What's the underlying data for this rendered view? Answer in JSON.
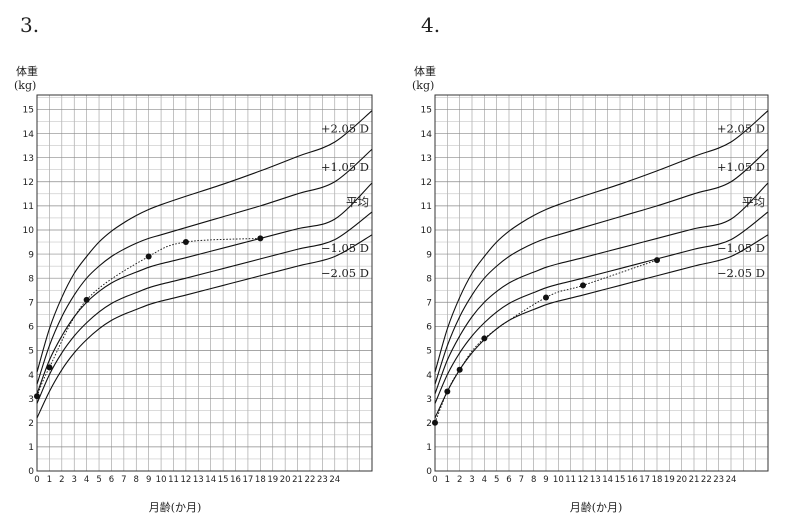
{
  "chart_data": [
    {
      "type": "line",
      "panel_label": "3.",
      "ylabel": "体重",
      "yunit": "(kg)",
      "xlabel": "月齢(か月)",
      "xlim": [
        0,
        27
      ],
      "ylim": [
        0,
        15.6
      ],
      "grid": true,
      "x_ticks": [
        0,
        1,
        2,
        3,
        4,
        5,
        6,
        7,
        8,
        9,
        10,
        11,
        12,
        13,
        14,
        15,
        16,
        17,
        18,
        19,
        20,
        21,
        22,
        23,
        24
      ],
      "y_ticks": [
        0,
        1,
        2,
        3,
        4,
        5,
        6,
        7,
        8,
        9,
        10,
        11,
        12,
        13,
        14,
        15
      ],
      "curves": [
        {
          "label": "+2.05 D",
          "x": [
            0,
            1,
            2,
            3,
            4,
            5,
            6,
            7,
            8,
            9,
            10,
            12,
            15,
            18,
            21,
            24,
            27
          ],
          "y": [
            4.1,
            5.9,
            7.2,
            8.2,
            8.9,
            9.5,
            9.95,
            10.3,
            10.6,
            10.85,
            11.05,
            11.4,
            11.9,
            12.45,
            13.05,
            13.65,
            14.95
          ]
        },
        {
          "label": "+1.05 D",
          "x": [
            0,
            1,
            2,
            3,
            4,
            5,
            6,
            7,
            8,
            9,
            10,
            12,
            15,
            18,
            21,
            24,
            27
          ],
          "y": [
            3.6,
            5.2,
            6.4,
            7.3,
            8.0,
            8.5,
            8.9,
            9.2,
            9.45,
            9.65,
            9.8,
            10.1,
            10.55,
            11.0,
            11.5,
            12.0,
            13.35
          ]
        },
        {
          "label": "平均",
          "x": [
            0,
            1,
            2,
            3,
            4,
            5,
            6,
            7,
            8,
            9,
            10,
            12,
            15,
            18,
            21,
            24,
            27
          ],
          "y": [
            3.2,
            4.6,
            5.6,
            6.4,
            7.0,
            7.45,
            7.8,
            8.05,
            8.25,
            8.45,
            8.6,
            8.85,
            9.25,
            9.65,
            10.05,
            10.45,
            11.95
          ]
        },
        {
          "label": "−1.05 D",
          "x": [
            0,
            1,
            2,
            3,
            4,
            5,
            6,
            7,
            8,
            9,
            10,
            12,
            15,
            18,
            21,
            24,
            27
          ],
          "y": [
            2.8,
            4.0,
            4.9,
            5.6,
            6.15,
            6.6,
            6.95,
            7.2,
            7.4,
            7.6,
            7.75,
            8.0,
            8.4,
            8.8,
            9.2,
            9.6,
            10.75
          ]
        },
        {
          "label": "−2.05 D",
          "x": [
            0,
            1,
            2,
            3,
            4,
            5,
            6,
            7,
            8,
            9,
            10,
            12,
            15,
            18,
            21,
            24,
            27
          ],
          "y": [
            2.2,
            3.3,
            4.2,
            4.9,
            5.45,
            5.9,
            6.25,
            6.5,
            6.7,
            6.9,
            7.05,
            7.3,
            7.7,
            8.1,
            8.5,
            8.9,
            9.8
          ]
        }
      ],
      "measurements": {
        "x": [
          0,
          1,
          4,
          9,
          12,
          18
        ],
        "y": [
          3.1,
          4.3,
          7.1,
          8.9,
          9.5,
          9.65
        ]
      }
    },
    {
      "type": "line",
      "panel_label": "4.",
      "ylabel": "体重",
      "yunit": "(kg)",
      "xlabel": "月齢(か月)",
      "xlim": [
        0,
        27
      ],
      "ylim": [
        0,
        15.6
      ],
      "grid": true,
      "x_ticks": [
        0,
        1,
        2,
        3,
        4,
        5,
        6,
        7,
        8,
        9,
        10,
        11,
        12,
        13,
        14,
        15,
        16,
        17,
        18,
        19,
        20,
        21,
        22,
        23,
        24
      ],
      "y_ticks": [
        0,
        1,
        2,
        3,
        4,
        5,
        6,
        7,
        8,
        9,
        10,
        11,
        12,
        13,
        14,
        15
      ],
      "curves": [
        {
          "label": "+2.05 D",
          "x": [
            0,
            1,
            2,
            3,
            4,
            5,
            6,
            7,
            8,
            9,
            10,
            12,
            15,
            18,
            21,
            24,
            27
          ],
          "y": [
            4.1,
            5.9,
            7.2,
            8.2,
            8.9,
            9.5,
            9.95,
            10.3,
            10.6,
            10.85,
            11.05,
            11.4,
            11.9,
            12.45,
            13.05,
            13.65,
            14.95
          ]
        },
        {
          "label": "+1.05 D",
          "x": [
            0,
            1,
            2,
            3,
            4,
            5,
            6,
            7,
            8,
            9,
            10,
            12,
            15,
            18,
            21,
            24,
            27
          ],
          "y": [
            3.6,
            5.2,
            6.4,
            7.3,
            8.0,
            8.5,
            8.9,
            9.2,
            9.45,
            9.65,
            9.8,
            10.1,
            10.55,
            11.0,
            11.5,
            12.0,
            13.35
          ]
        },
        {
          "label": "平均",
          "x": [
            0,
            1,
            2,
            3,
            4,
            5,
            6,
            7,
            8,
            9,
            10,
            12,
            15,
            18,
            21,
            24,
            27
          ],
          "y": [
            3.2,
            4.6,
            5.6,
            6.4,
            7.0,
            7.45,
            7.8,
            8.05,
            8.25,
            8.45,
            8.6,
            8.85,
            9.25,
            9.65,
            10.05,
            10.45,
            11.95
          ]
        },
        {
          "label": "−1.05 D",
          "x": [
            0,
            1,
            2,
            3,
            4,
            5,
            6,
            7,
            8,
            9,
            10,
            12,
            15,
            18,
            21,
            24,
            27
          ],
          "y": [
            2.8,
            4.0,
            4.9,
            5.6,
            6.15,
            6.6,
            6.95,
            7.2,
            7.4,
            7.6,
            7.75,
            8.0,
            8.4,
            8.8,
            9.2,
            9.6,
            10.75
          ]
        },
        {
          "label": "−2.05 D",
          "x": [
            0,
            1,
            2,
            3,
            4,
            5,
            6,
            7,
            8,
            9,
            10,
            12,
            15,
            18,
            21,
            24,
            27
          ],
          "y": [
            2.2,
            3.3,
            4.2,
            4.9,
            5.45,
            5.9,
            6.25,
            6.5,
            6.7,
            6.9,
            7.05,
            7.3,
            7.7,
            8.1,
            8.5,
            8.9,
            9.8
          ]
        }
      ],
      "measurements": {
        "x": [
          0,
          1,
          2,
          4,
          9,
          12,
          18
        ],
        "y": [
          2.0,
          3.3,
          4.2,
          5.5,
          7.2,
          7.7,
          8.75
        ]
      }
    }
  ]
}
